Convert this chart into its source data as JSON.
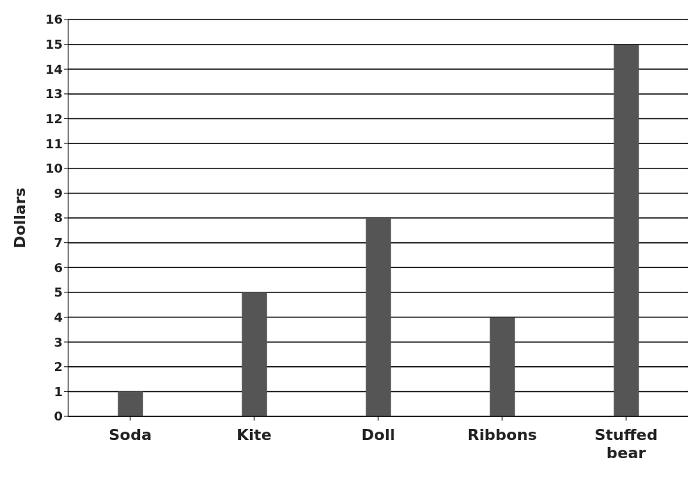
{
  "chart_data": {
    "type": "bar",
    "ylabel": "Dollars",
    "categories": [
      "Soda",
      "Kite",
      "Doll",
      "Ribbons",
      "Stuffed bear"
    ],
    "values": [
      1,
      5,
      8,
      4,
      15
    ],
    "color": "#555555",
    "ylim": [
      0,
      16
    ],
    "yticks": [
      0,
      1,
      2,
      3,
      4,
      5,
      6,
      7,
      8,
      9,
      10,
      11,
      12,
      13,
      14,
      15,
      16
    ],
    "grid": "y"
  }
}
